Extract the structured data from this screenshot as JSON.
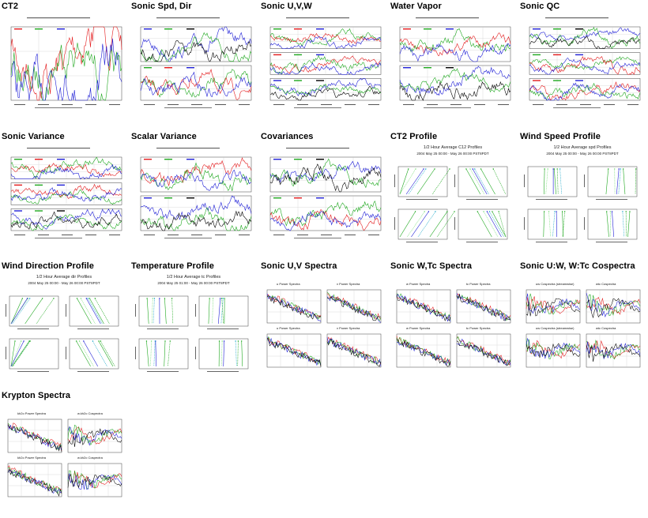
{
  "colors": {
    "red": "#e31a1c",
    "green": "#1fa81f",
    "blue": "#1f1fd6",
    "black": "#000000",
    "lightgreen": "#7ce07c",
    "cyan": "#1fa8c8",
    "yellow": "#d8d800",
    "grid": "#c8c8c8"
  },
  "cells": [
    {
      "id": "ct2",
      "title": "CT2",
      "kind": "timeseries",
      "panels": 1
    },
    {
      "id": "sonic-spd-dir",
      "title": "Sonic Spd, Dir",
      "kind": "timeseries",
      "panels": 2
    },
    {
      "id": "sonic-uvw",
      "title": "Sonic U,V,W",
      "kind": "timeseries",
      "panels": 3
    },
    {
      "id": "water-vapor",
      "title": "Water Vapor",
      "kind": "timeseries",
      "panels": 2
    },
    {
      "id": "sonic-qc",
      "title": "Sonic QC",
      "kind": "timeseries",
      "panels": 3
    },
    {
      "id": "sonic-variance",
      "title": "Sonic Variance",
      "kind": "timeseries",
      "panels": 3
    },
    {
      "id": "scalar-variance",
      "title": "Scalar Variance",
      "kind": "timeseries",
      "panels": 2
    },
    {
      "id": "covariances",
      "title": "Covariances",
      "kind": "timeseries",
      "panels": 2
    },
    {
      "id": "ct2-profile",
      "title": "CT2 Profile",
      "kind": "profile",
      "header": "1/2 Hour Average C12 Profiles",
      "subheader": "2004 May 25 00:00 - May 26 00:00 PST8PDT"
    },
    {
      "id": "wind-speed-profile",
      "title": "Wind Speed Profile",
      "kind": "profile",
      "header": "1/2 Hour Average spd Profiles",
      "subheader": "2004 May 25 00:00 - May 26 00:00 PST8PDT"
    },
    {
      "id": "wind-direction-profile",
      "title": "Wind Direction Profile",
      "kind": "profile",
      "header": "1/2 Hour Average dir Profiles",
      "subheader": "2004 May 25 00:00 - May 26 00:00 PST8PDT"
    },
    {
      "id": "temperature-profile",
      "title": "Temperature Profile",
      "kind": "profile",
      "header": "1/2 Hour Average tc Profiles",
      "subheader": "2004 May 25 01:00 - May 26 00:00 PST8PDT"
    },
    {
      "id": "sonic-uv-spectra",
      "title": "Sonic U,V Spectra",
      "kind": "spectra",
      "labels": [
        "u Power Spectra",
        "v Power Spectra",
        "u Power Spectra",
        "v Power Spectra"
      ]
    },
    {
      "id": "sonic-wto-spectra",
      "title": "Sonic W,Tc Spectra",
      "kind": "spectra",
      "labels": [
        "w Power Spectra",
        "tc Power Spectra",
        "w Power Spectra",
        "tc Power Spectra"
      ]
    },
    {
      "id": "sonic-uw-wtc-cospectra",
      "title": "Sonic U:W, W:Tc Cospectra",
      "kind": "spectra",
      "labels": [
        "uw Cospectra (streamwise)",
        "wtc Cospectra",
        "uw Cospectra (streamwise)",
        "wtc Cospectra"
      ]
    },
    {
      "id": "krypton-spectra",
      "title": "Krypton Spectra",
      "kind": "spectra",
      "labels": [
        "kh2o Power Spectra",
        "w.kh2o Cospectra",
        "kh2o Power Spectra",
        "w.kh2o Cospectra"
      ]
    }
  ]
}
